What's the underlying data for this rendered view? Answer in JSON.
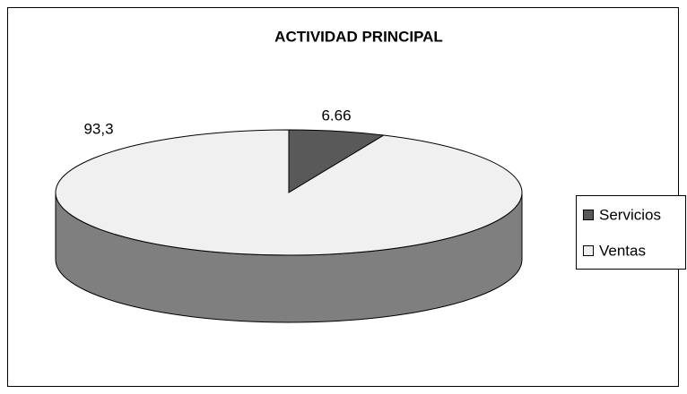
{
  "chart_data": {
    "type": "pie",
    "title": "ACTIVIDAD PRINCIPAL",
    "categories": [
      "Servicios",
      "Ventas"
    ],
    "values": [
      6.66,
      93.3
    ],
    "value_labels": [
      "6.66",
      "93,3"
    ],
    "colors": [
      "#595959",
      "#f0f0f0"
    ],
    "legend": "right"
  }
}
